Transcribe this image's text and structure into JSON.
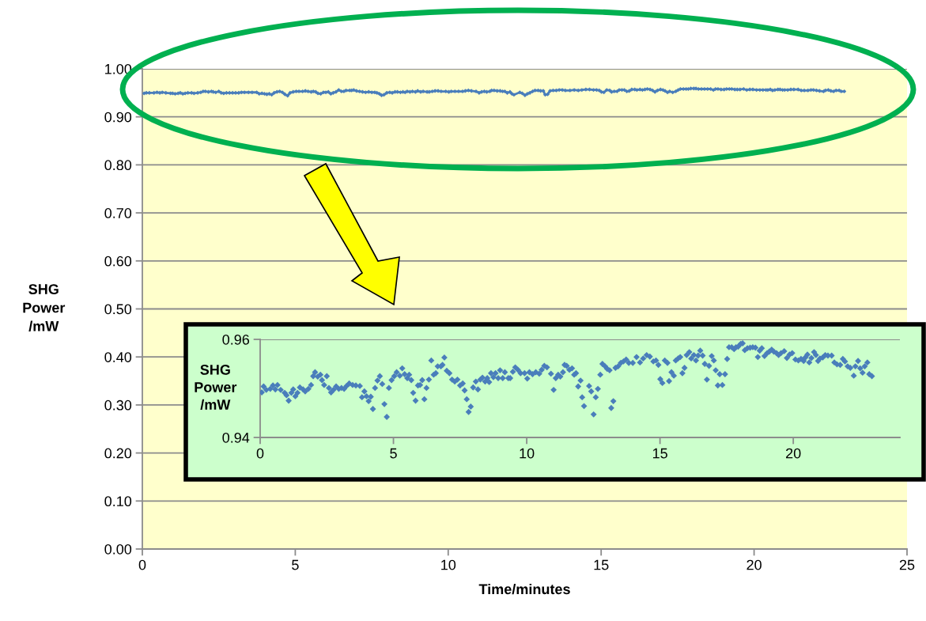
{
  "chart_data": [
    {
      "type": "line",
      "xlabel": "Time/minutes",
      "ylabel": "SHG\nPower\n/mW",
      "marker": "diamond",
      "line_style": "solid",
      "grid": "y",
      "xlim": [
        0,
        25
      ],
      "ylim": [
        0,
        1
      ],
      "xticks": [
        0,
        5,
        10,
        15,
        20,
        25
      ],
      "yticks": [
        {
          "value": 0,
          "label": "0.00"
        },
        {
          "value": 0.1,
          "label": "0.10"
        },
        {
          "value": 0.2,
          "label": "0.20"
        },
        {
          "value": 0.3,
          "label": "0.30"
        },
        {
          "value": 0.4,
          "label": "0.40"
        },
        {
          "value": 0.5,
          "label": "0.50"
        },
        {
          "value": 0.6,
          "label": "0.60"
        },
        {
          "value": 0.7,
          "label": "0.70"
        },
        {
          "value": 0.8,
          "label": "0.80"
        },
        {
          "value": 0.9,
          "label": "0.90"
        },
        {
          "value": 1,
          "label": "1.00"
        }
      ],
      "series": [
        {
          "color": "#4a7ebb",
          "x": [
            0.06,
            0.13,
            0.23,
            0.38,
            0.48,
            0.57,
            0.65,
            0.77,
            0.92,
            0.99,
            1.07,
            1.17,
            1.24,
            1.32,
            1.4,
            1.49,
            1.61,
            1.69,
            1.81,
            1.91,
            1.99,
            2.06,
            2.16,
            2.26,
            2.32,
            2.4,
            2.5,
            2.58,
            2.66,
            2.75,
            2.85,
            2.95,
            3.05,
            3.15,
            3.24,
            3.34,
            3.47,
            3.59,
            3.74,
            3.82,
            3.91,
            3.99,
            4.07,
            4.15,
            4.23,
            4.31,
            4.4,
            4.49,
            4.58,
            4.66,
            4.75,
            4.83,
            4.93,
            5.03,
            5.12,
            5.24,
            5.33,
            5.42,
            5.52,
            5.59,
            5.67,
            5.74,
            5.83,
            5.92,
            6.0,
            6.08,
            6.16,
            6.24,
            6.33,
            6.42,
            6.51,
            6.59,
            6.66,
            6.78,
            6.84,
            6.91,
            7.0,
            7.1,
            7.2,
            7.3,
            7.4,
            7.5,
            7.6,
            7.67,
            7.75,
            7.82,
            7.9,
            7.99,
            8.09,
            8.17,
            8.26,
            8.34,
            8.44,
            8.52,
            8.59,
            8.66,
            8.75,
            8.83,
            8.93,
            9.0,
            9.1,
            9.18,
            9.31,
            9.38,
            9.48,
            9.57,
            9.67,
            9.77,
            9.92,
            10.02,
            10.1,
            10.22,
            10.34,
            10.47,
            10.56,
            10.66,
            10.76,
            10.91,
            11.01,
            11.09,
            11.18,
            11.26,
            11.36,
            11.42,
            11.5,
            11.6,
            11.7,
            11.78,
            11.85,
            11.93,
            12.02,
            12.08,
            12.15,
            12.34,
            12.42,
            12.51,
            12.59,
            12.67,
            12.76,
            12.84,
            12.94,
            13.02,
            13.11,
            13.17,
            13.25,
            13.33,
            13.43,
            13.53,
            13.63,
            13.73,
            13.83,
            13.98,
            14.12,
            14.25,
            14.37,
            14.5,
            14.62,
            14.75,
            14.85,
            14.94,
            15.01,
            15.09,
            15.18,
            15.28,
            15.34,
            15.43,
            15.52,
            15.59,
            15.68,
            15.76,
            15.84,
            15.92,
            16.0,
            16.1,
            16.17,
            16.27,
            16.35,
            16.43,
            16.51,
            16.6,
            16.68,
            16.76,
            16.84,
            16.94,
            17.02,
            17.09,
            17.17,
            17.24,
            17.34,
            17.44,
            17.52,
            17.59,
            17.69,
            17.78,
            17.85,
            17.93,
            18.03,
            18.1,
            18.18,
            18.28,
            18.38,
            18.48,
            18.58,
            18.67,
            18.74,
            18.82,
            18.92,
            19.02,
            19.1,
            19.19,
            19.27,
            19.37,
            19.45,
            19.54,
            19.66,
            19.76,
            19.86,
            19.96,
            20.08,
            20.19,
            20.29,
            20.39,
            20.45,
            20.53,
            20.6,
            20.68,
            20.78,
            20.85,
            20.93,
            21.0,
            21.1,
            21.2,
            21.3,
            21.44,
            21.54,
            21.64,
            21.76,
            21.86,
            21.94,
            22.04,
            22.14,
            22.27,
            22.33,
            22.43,
            22.51,
            22.6,
            22.68,
            22.78,
            22.85,
            22.95
          ],
          "values": [
            0.949,
            0.95,
            0.95,
            0.95,
            0.951,
            0.95,
            0.951,
            0.95,
            0.949,
            0.949,
            0.948,
            0.949,
            0.95,
            0.948,
            0.949,
            0.95,
            0.95,
            0.949,
            0.95,
            0.951,
            0.953,
            0.953,
            0.952,
            0.953,
            0.952,
            0.951,
            0.953,
            0.95,
            0.949,
            0.95,
            0.95,
            0.95,
            0.95,
            0.95,
            0.951,
            0.951,
            0.951,
            0.951,
            0.951,
            0.948,
            0.949,
            0.948,
            0.947,
            0.948,
            0.946,
            0.95,
            0.952,
            0.953,
            0.951,
            0.947,
            0.944,
            0.95,
            0.952,
            0.953,
            0.953,
            0.953,
            0.954,
            0.953,
            0.952,
            0.953,
            0.952,
            0.949,
            0.948,
            0.951,
            0.951,
            0.952,
            0.948,
            0.95,
            0.952,
            0.956,
            0.953,
            0.953,
            0.955,
            0.955,
            0.955,
            0.956,
            0.954,
            0.953,
            0.952,
            0.951,
            0.952,
            0.951,
            0.951,
            0.95,
            0.948,
            0.945,
            0.946,
            0.95,
            0.951,
            0.95,
            0.952,
            0.952,
            0.951,
            0.952,
            0.951,
            0.953,
            0.952,
            0.953,
            0.952,
            0.954,
            0.952,
            0.953,
            0.952,
            0.952,
            0.953,
            0.954,
            0.954,
            0.953,
            0.953,
            0.952,
            0.953,
            0.953,
            0.953,
            0.953,
            0.954,
            0.955,
            0.954,
            0.953,
            0.95,
            0.952,
            0.953,
            0.952,
            0.953,
            0.955,
            0.955,
            0.954,
            0.954,
            0.953,
            0.953,
            0.95,
            0.952,
            0.948,
            0.946,
            0.951,
            0.949,
            0.945,
            0.948,
            0.95,
            0.953,
            0.955,
            0.955,
            0.954,
            0.954,
            0.946,
            0.947,
            0.954,
            0.955,
            0.955,
            0.956,
            0.956,
            0.955,
            0.955,
            0.956,
            0.955,
            0.956,
            0.957,
            0.957,
            0.956,
            0.956,
            0.955,
            0.952,
            0.951,
            0.956,
            0.955,
            0.952,
            0.953,
            0.953,
            0.956,
            0.956,
            0.956,
            0.953,
            0.954,
            0.957,
            0.957,
            0.956,
            0.957,
            0.956,
            0.957,
            0.958,
            0.957,
            0.955,
            0.952,
            0.955,
            0.957,
            0.956,
            0.954,
            0.951,
            0.953,
            0.951,
            0.953,
            0.956,
            0.958,
            0.958,
            0.958,
            0.958,
            0.959,
            0.959,
            0.959,
            0.958,
            0.958,
            0.958,
            0.958,
            0.958,
            0.956,
            0.958,
            0.958,
            0.957,
            0.957,
            0.958,
            0.958,
            0.958,
            0.957,
            0.957,
            0.957,
            0.958,
            0.956,
            0.957,
            0.957,
            0.956,
            0.956,
            0.956,
            0.956,
            0.956,
            0.957,
            0.955,
            0.956,
            0.957,
            0.957,
            0.956,
            0.956,
            0.956,
            0.957,
            0.957,
            0.957,
            0.955,
            0.955,
            0.955,
            0.956,
            0.956,
            0.955,
            0.954,
            0.953,
            0.955,
            0.956,
            0.954,
            0.953,
            0.955,
            0.955,
            0.953,
            0.953
          ]
        }
      ]
    },
    {
      "type": "scatter",
      "ylabel": "SHG\nPower\n/mW",
      "marker": "diamond",
      "grid": "y",
      "xlim": [
        0,
        24
      ],
      "ylim": [
        0.94,
        0.96
      ],
      "xticks": [
        0,
        5,
        10,
        15,
        20
      ],
      "yticks": [
        0.94,
        0.96
      ],
      "series": [
        {
          "color": "#4a7ebb",
          "x": [
            0.06,
            0.13,
            0.23,
            0.38,
            0.48,
            0.57,
            0.65,
            0.77,
            0.92,
            0.99,
            1.07,
            1.17,
            1.24,
            1.32,
            1.4,
            1.49,
            1.61,
            1.69,
            1.81,
            1.91,
            1.99,
            2.06,
            2.16,
            2.26,
            2.32,
            2.4,
            2.5,
            2.58,
            2.66,
            2.75,
            2.85,
            2.95,
            3.05,
            3.15,
            3.24,
            3.34,
            3.47,
            3.59,
            3.74,
            3.82,
            3.91,
            3.99,
            4.07,
            4.15,
            4.23,
            4.31,
            4.4,
            4.49,
            4.58,
            4.66,
            4.75,
            4.83,
            4.93,
            5.03,
            5.12,
            5.24,
            5.33,
            5.42,
            5.52,
            5.59,
            5.67,
            5.74,
            5.83,
            5.92,
            6.0,
            6.08,
            6.16,
            6.24,
            6.33,
            6.42,
            6.51,
            6.59,
            6.66,
            6.78,
            6.84,
            6.91,
            7.0,
            7.1,
            7.2,
            7.3,
            7.4,
            7.5,
            7.6,
            7.67,
            7.75,
            7.82,
            7.9,
            7.99,
            8.09,
            8.17,
            8.26,
            8.34,
            8.44,
            8.52,
            8.59,
            8.66,
            8.75,
            8.83,
            8.93,
            9.0,
            9.1,
            9.18,
            9.31,
            9.38,
            9.48,
            9.57,
            9.67,
            9.77,
            9.92,
            10.02,
            10.1,
            10.22,
            10.34,
            10.47,
            10.56,
            10.66,
            10.76,
            10.91,
            11.01,
            11.09,
            11.18,
            11.26,
            11.36,
            11.42,
            11.5,
            11.6,
            11.7,
            11.78,
            11.85,
            11.93,
            12.02,
            12.08,
            12.15,
            12.34,
            12.42,
            12.51,
            12.59,
            12.67,
            12.76,
            12.84,
            12.94,
            13.02,
            13.11,
            13.17,
            13.25,
            13.33,
            13.43,
            13.53,
            13.63,
            13.73,
            13.83,
            13.98,
            14.12,
            14.25,
            14.37,
            14.5,
            14.62,
            14.75,
            14.85,
            14.94,
            15.01,
            15.09,
            15.18,
            15.28,
            15.34,
            15.43,
            15.52,
            15.59,
            15.68,
            15.76,
            15.84,
            15.92,
            16.0,
            16.1,
            16.17,
            16.27,
            16.35,
            16.43,
            16.51,
            16.6,
            16.68,
            16.76,
            16.84,
            16.94,
            17.02,
            17.09,
            17.17,
            17.24,
            17.34,
            17.44,
            17.52,
            17.59,
            17.69,
            17.78,
            17.85,
            17.93,
            18.03,
            18.1,
            18.18,
            18.28,
            18.38,
            18.48,
            18.58,
            18.67,
            18.74,
            18.82,
            18.92,
            19.02,
            19.1,
            19.19,
            19.27,
            19.37,
            19.45,
            19.54,
            19.66,
            19.76,
            19.86,
            19.96,
            20.08,
            20.19,
            20.29,
            20.39,
            20.45,
            20.53,
            20.6,
            20.68,
            20.78,
            20.85,
            20.93,
            21.0,
            21.1,
            21.2,
            21.3,
            21.44,
            21.54,
            21.64,
            21.76,
            21.86,
            21.94,
            22.04,
            22.14,
            22.27,
            22.33,
            22.43,
            22.51,
            22.6,
            22.68,
            22.78,
            22.85,
            22.95
          ],
          "values": [
            0.9492,
            0.9504,
            0.9497,
            0.9499,
            0.9506,
            0.9498,
            0.9507,
            0.9497,
            0.9491,
            0.9486,
            0.9475,
            0.9491,
            0.9498,
            0.9484,
            0.9491,
            0.9502,
            0.9498,
            0.9494,
            0.9499,
            0.9507,
            0.9525,
            0.9533,
            0.9524,
            0.9528,
            0.9517,
            0.9507,
            0.9525,
            0.9501,
            0.9492,
            0.9497,
            0.9504,
            0.9499,
            0.9501,
            0.9499,
            0.9505,
            0.951,
            0.9507,
            0.9506,
            0.9505,
            0.9482,
            0.9494,
            0.9484,
            0.9474,
            0.9483,
            0.9458,
            0.9501,
            0.9516,
            0.9525,
            0.9509,
            0.9468,
            0.9442,
            0.9501,
            0.9517,
            0.9525,
            0.9533,
            0.9526,
            0.9541,
            0.9529,
            0.9521,
            0.9528,
            0.9517,
            0.9491,
            0.9475,
            0.9506,
            0.9507,
            0.9517,
            0.9478,
            0.9501,
            0.9518,
            0.9557,
            0.9528,
            0.9531,
            0.9545,
            0.9545,
            0.9548,
            0.9563,
            0.9536,
            0.9531,
            0.9518,
            0.9514,
            0.9518,
            0.9506,
            0.951,
            0.9496,
            0.9478,
            0.9452,
            0.9463,
            0.9502,
            0.9514,
            0.9498,
            0.9518,
            0.9522,
            0.9514,
            0.9521,
            0.9513,
            0.9531,
            0.9523,
            0.9531,
            0.9521,
            0.9537,
            0.9521,
            0.9533,
            0.9521,
            0.9521,
            0.9534,
            0.9543,
            0.9538,
            0.9531,
            0.9531,
            0.952,
            0.9533,
            0.9529,
            0.9533,
            0.953,
            0.9538,
            0.9546,
            0.9543,
            0.953,
            0.9497,
            0.9521,
            0.9528,
            0.9524,
            0.9533,
            0.9548,
            0.9546,
            0.9538,
            0.9541,
            0.9528,
            0.9531,
            0.9504,
            0.9516,
            0.9482,
            0.9464,
            0.9505,
            0.9494,
            0.9447,
            0.9482,
            0.9499,
            0.9528,
            0.955,
            0.9545,
            0.954,
            0.9537,
            0.946,
            0.9474,
            0.9542,
            0.9545,
            0.9552,
            0.9555,
            0.9559,
            0.9552,
            0.9552,
            0.9564,
            0.9553,
            0.9561,
            0.9568,
            0.9565,
            0.9555,
            0.9557,
            0.9548,
            0.9519,
            0.9511,
            0.9557,
            0.9552,
            0.9515,
            0.9533,
            0.9526,
            0.9557,
            0.9561,
            0.9564,
            0.9531,
            0.9542,
            0.9568,
            0.9574,
            0.9561,
            0.9568,
            0.9557,
            0.9567,
            0.9577,
            0.9567,
            0.955,
            0.9518,
            0.9546,
            0.9566,
            0.9557,
            0.9537,
            0.9506,
            0.9529,
            0.9507,
            0.9529,
            0.956,
            0.9584,
            0.9584,
            0.958,
            0.9584,
            0.9585,
            0.9591,
            0.9592,
            0.9578,
            0.9582,
            0.9583,
            0.9584,
            0.9583,
            0.9564,
            0.9577,
            0.9582,
            0.9566,
            0.9572,
            0.9575,
            0.9579,
            0.9575,
            0.9572,
            0.9568,
            0.9572,
            0.9576,
            0.9562,
            0.9569,
            0.9572,
            0.9559,
            0.9557,
            0.956,
            0.9556,
            0.9563,
            0.9569,
            0.9553,
            0.9562,
            0.9574,
            0.9568,
            0.9556,
            0.9561,
            0.9563,
            0.9568,
            0.9567,
            0.9567,
            0.9553,
            0.9549,
            0.9548,
            0.956,
            0.9555,
            0.9545,
            0.9542,
            0.9526,
            0.9545,
            0.9556,
            0.9541,
            0.9532,
            0.9545,
            0.9553,
            0.9529,
            0.9525
          ]
        }
      ]
    }
  ]
}
